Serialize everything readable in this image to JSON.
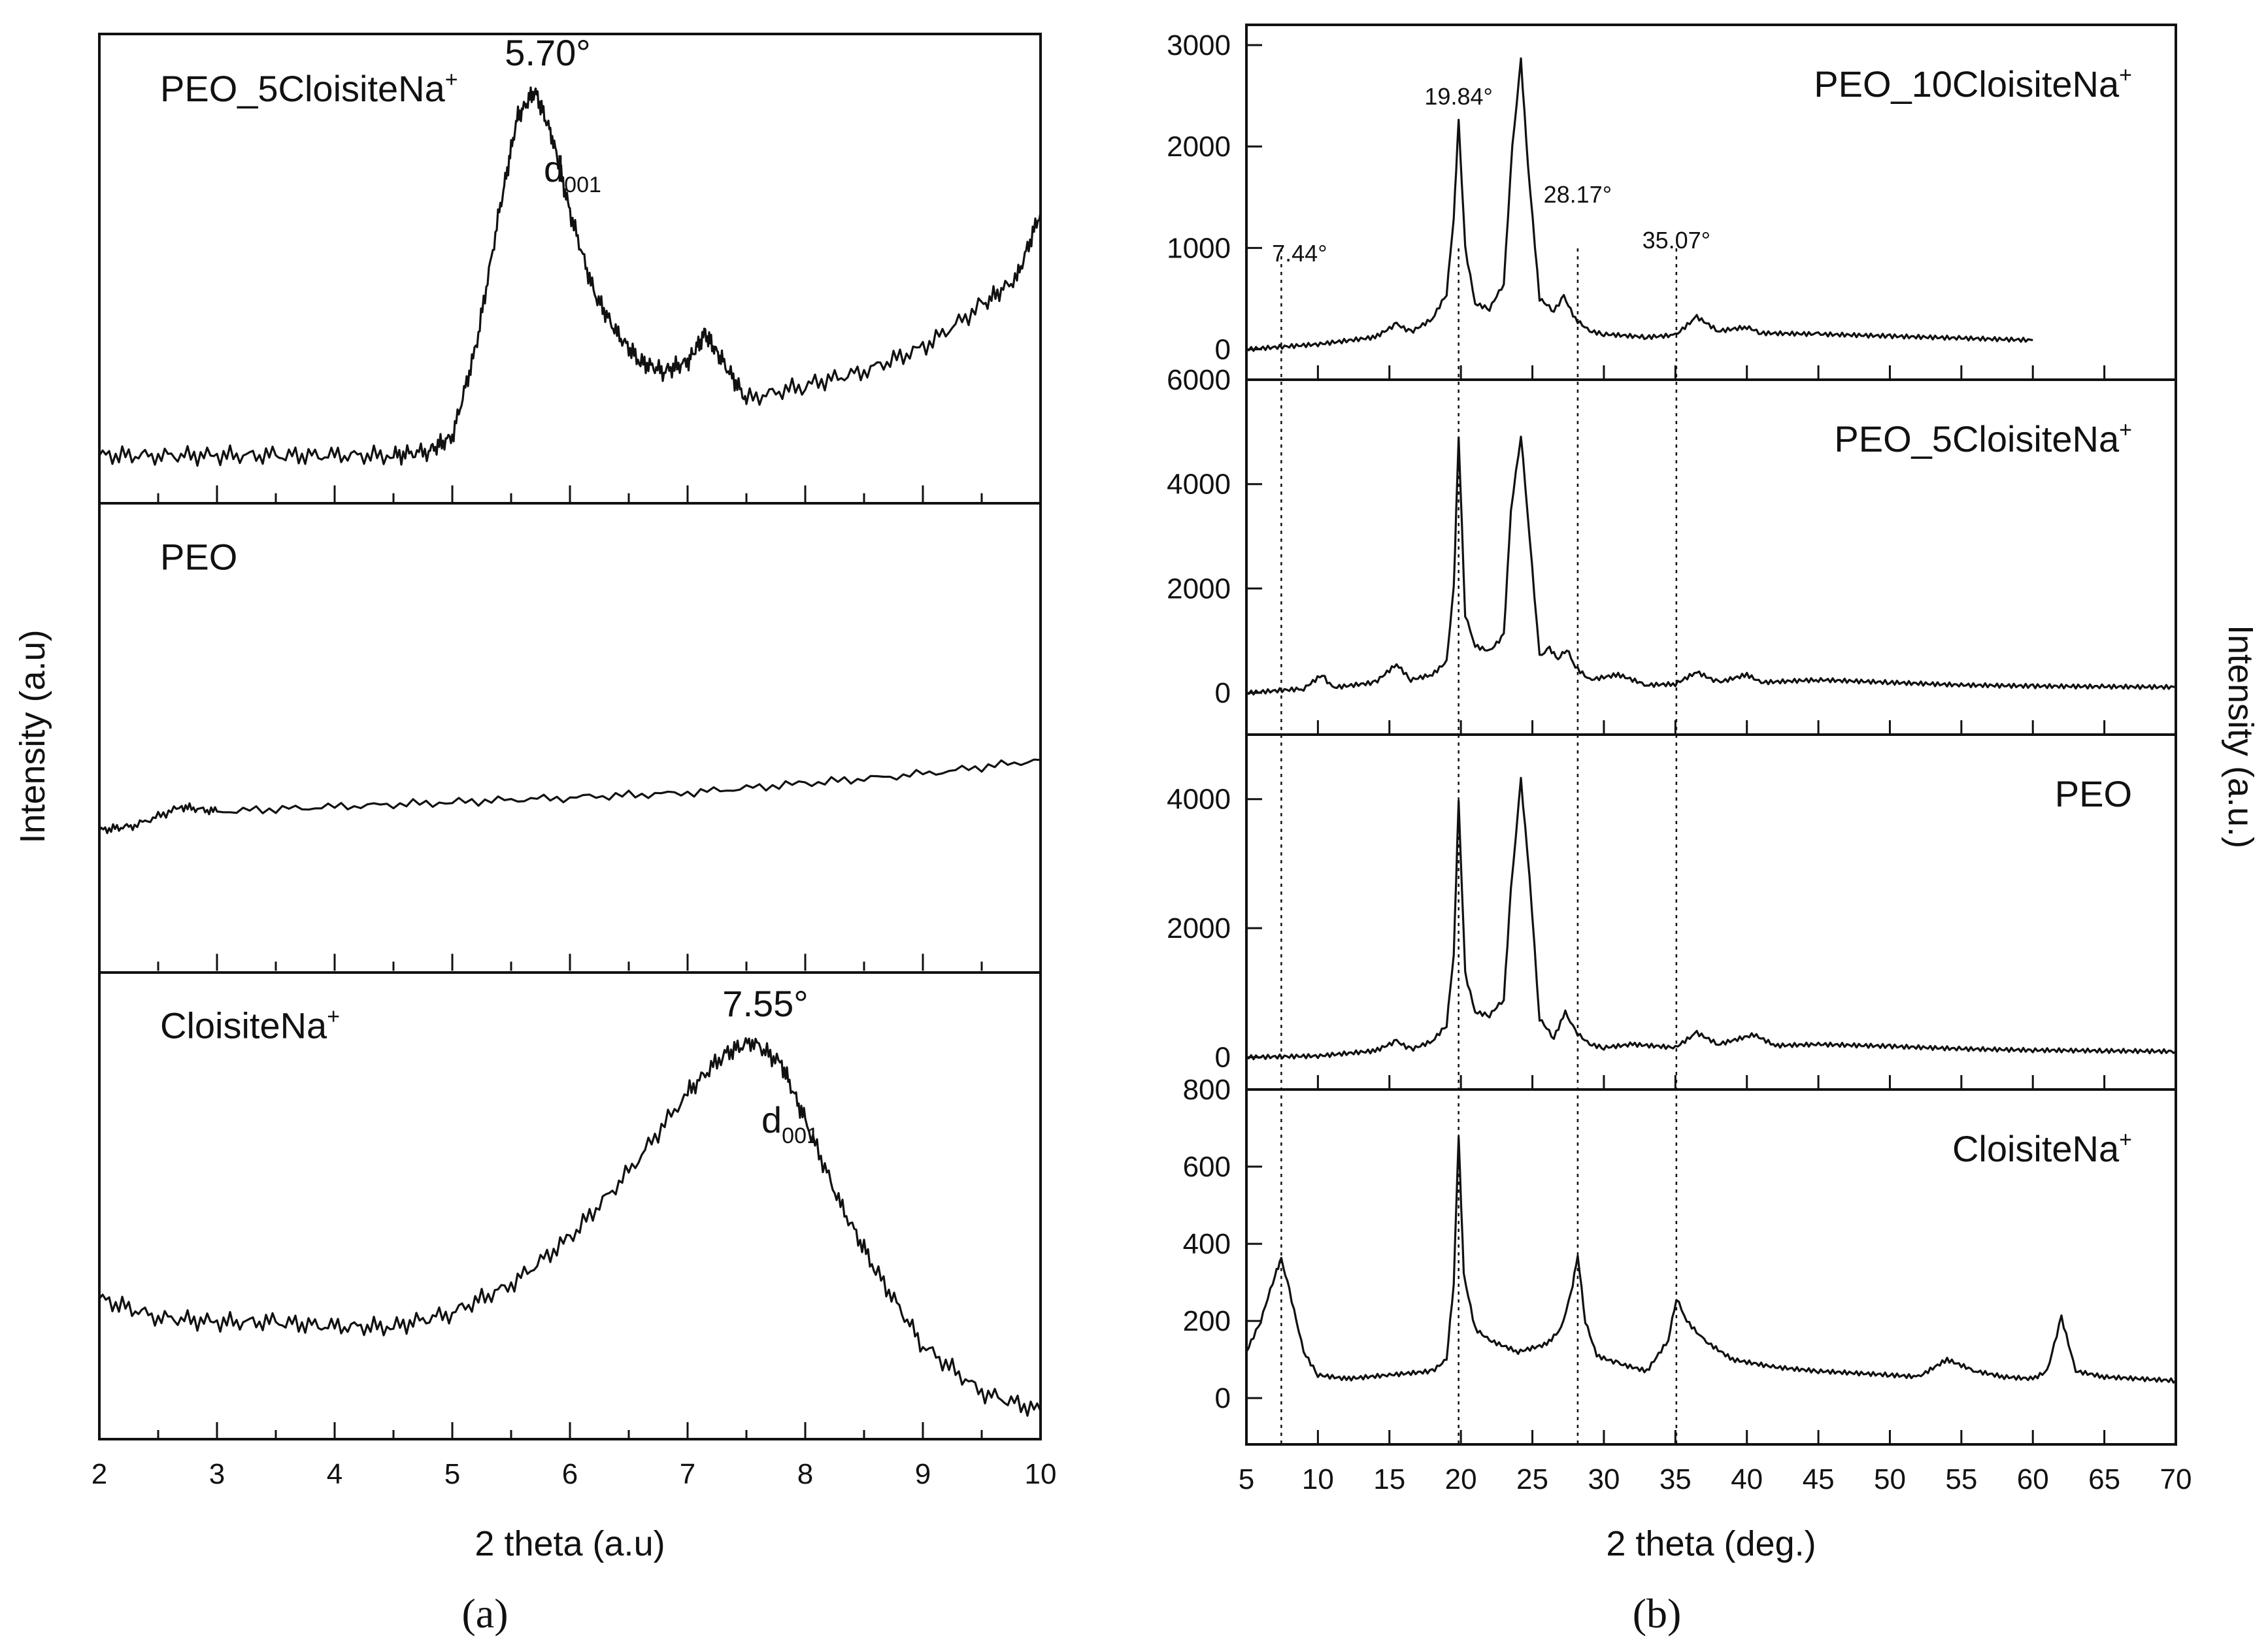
{
  "figure": {
    "subplot_a_label": "(a)",
    "subplot_b_label": "(b)"
  },
  "chart_data": [
    {
      "type": "line",
      "id": "a",
      "xlabel": "2 theta (a.u)",
      "ylabel": "Intensity (a.u)",
      "xlim": [
        2,
        10
      ],
      "xticks": [
        2,
        3,
        4,
        5,
        6,
        7,
        8,
        9,
        10
      ],
      "stacked_panels": [
        {
          "name": "PEO_5CloisiteNa+",
          "label": "PEO_5CloisiteNa",
          "label_sup": "+",
          "peak_label": "5.70°",
          "d_label": "d",
          "d_sub": "001",
          "series": {
            "x": [
              2.0,
              2.5,
              3.0,
              3.5,
              4.0,
              4.5,
              4.8,
              5.0,
              5.2,
              5.4,
              5.55,
              5.7,
              5.85,
              6.0,
              6.2,
              6.4,
              6.6,
              6.8,
              7.0,
              7.15,
              7.3,
              7.5,
              8.0,
              8.5,
              9.0,
              9.5,
              9.8,
              10.0
            ],
            "y": [
              0.1,
              0.1,
              0.1,
              0.1,
              0.1,
              0.1,
              0.11,
              0.14,
              0.33,
              0.62,
              0.82,
              0.88,
              0.78,
              0.62,
              0.45,
              0.36,
              0.3,
              0.28,
              0.3,
              0.36,
              0.3,
              0.22,
              0.25,
              0.28,
              0.33,
              0.42,
              0.48,
              0.62
            ]
          }
        },
        {
          "name": "PEO",
          "label": "PEO",
          "series": {
            "x": [
              2.0,
              2.3,
              2.7,
              3.0,
              4.0,
              5.0,
              6.0,
              7.0,
              8.0,
              9.0,
              10.0
            ],
            "y": [
              0.3,
              0.31,
              0.35,
              0.34,
              0.35,
              0.36,
              0.37,
              0.38,
              0.4,
              0.42,
              0.45
            ]
          }
        },
        {
          "name": "CloisiteNa+",
          "label": "CloisiteNa",
          "label_sup": "+",
          "peak_label": "7.55°",
          "d_label": "d",
          "d_sub": "001",
          "series": {
            "x": [
              2.0,
              2.5,
              3.0,
              3.5,
              4.0,
              4.5,
              5.0,
              5.5,
              6.0,
              6.5,
              7.0,
              7.3,
              7.55,
              7.8,
              8.0,
              8.3,
              8.6,
              9.0,
              9.5,
              10.0
            ],
            "y": [
              0.3,
              0.26,
              0.25,
              0.25,
              0.24,
              0.24,
              0.27,
              0.33,
              0.43,
              0.57,
              0.74,
              0.82,
              0.85,
              0.8,
              0.68,
              0.5,
              0.36,
              0.2,
              0.1,
              0.06
            ]
          }
        }
      ]
    },
    {
      "type": "line",
      "id": "b",
      "xlabel": "2 theta (deg.)",
      "ylabel": "Intensity (a.u.)",
      "xlim": [
        5,
        70
      ],
      "xticks": [
        5,
        10,
        15,
        20,
        25,
        30,
        35,
        40,
        45,
        50,
        55,
        60,
        65,
        70
      ],
      "reference_lines": [
        {
          "x": 7.44,
          "label": "7.44°"
        },
        {
          "x": 19.84,
          "label": "19.84°"
        },
        {
          "x": 28.17,
          "label": "28.17°"
        },
        {
          "x": 35.07,
          "label": "35.07°"
        }
      ],
      "stacked_panels": [
        {
          "name": "PEO_10CloisiteNa+",
          "label": "PEO_10CloisiteNa",
          "label_sup": "+",
          "ylim": [
            -300,
            3200
          ],
          "yticks": [
            0,
            1000,
            2000,
            3000
          ],
          "ytick_labels": [
            "0",
            "1000",
            "2000",
            "3000"
          ],
          "series": {
            "x": [
              5,
              10,
              14,
              15.5,
              16.5,
              18,
              19,
              19.5,
              19.84,
              20.3,
              21,
              22,
              23,
              23.6,
              24.2,
              24.7,
              25.5,
              26.5,
              27.2,
              28,
              29,
              30,
              33,
              35,
              36.5,
              38,
              40,
              41,
              45,
              50,
              55,
              60
            ],
            "y": [
              0,
              50,
              120,
              250,
              170,
              300,
              550,
              1300,
              2250,
              1000,
              450,
              400,
              650,
              2000,
              2850,
              1800,
              500,
              380,
              520,
              300,
              180,
              150,
              120,
              140,
              320,
              180,
              220,
              160,
              150,
              130,
              110,
              90
            ]
          }
        },
        {
          "name": "PEO_5CloisiteNa+",
          "label": "PEO_5CloisiteNa",
          "label_sup": "+",
          "ylim": [
            -800,
            6000
          ],
          "yticks": [
            0,
            2000,
            4000,
            6000
          ],
          "ytick_labels": [
            "0",
            "2000",
            "4000",
            "6000"
          ],
          "series": {
            "x": [
              5,
              9,
              10.3,
              11,
              14,
              15.5,
              16.5,
              18,
              19,
              19.5,
              19.84,
              20.3,
              21,
              22,
              23,
              23.5,
              24.2,
              24.8,
              25.5,
              26.2,
              26.8,
              27.4,
              28,
              29,
              31,
              33,
              35,
              36.5,
              38,
              40,
              41,
              45,
              50,
              55,
              60,
              65,
              70
            ],
            "y": [
              0,
              80,
              350,
              100,
              200,
              550,
              250,
              350,
              600,
              2000,
              4900,
              1500,
              900,
              800,
              1100,
              3500,
              4950,
              3000,
              700,
              850,
              650,
              850,
              500,
              250,
              350,
              150,
              170,
              400,
              200,
              350,
              200,
              250,
              200,
              150,
              130,
              120,
              110
            ]
          }
        },
        {
          "name": "PEO",
          "label": "PEO",
          "ylim": [
            -500,
            5000
          ],
          "yticks": [
            0,
            2000,
            4000
          ],
          "ytick_labels": [
            "0",
            "2000",
            "4000"
          ],
          "series": {
            "x": [
              5,
              10,
              14,
              15.5,
              16.5,
              18,
              19,
              19.5,
              19.84,
              20.3,
              21,
              22,
              23,
              23.5,
              24.2,
              24.8,
              25.5,
              26.5,
              27.3,
              28,
              29,
              30,
              32,
              35,
              36.5,
              38,
              40.5,
              42,
              45,
              50,
              55,
              60,
              65,
              70
            ],
            "y": [
              0,
              20,
              100,
              250,
              120,
              250,
              500,
              1600,
              3950,
              1300,
              700,
              650,
              900,
              2600,
              4300,
              2800,
              600,
              300,
              700,
              400,
              200,
              150,
              200,
              150,
              380,
              200,
              350,
              180,
              200,
              170,
              130,
              110,
              100,
              90
            ]
          }
        },
        {
          "name": "CloisiteNa+",
          "label": "CloisiteNa",
          "label_sup": "+",
          "ylim": [
            -120,
            800
          ],
          "yticks": [
            0,
            200,
            400,
            600,
            800
          ],
          "ytick_labels": [
            "0",
            "200",
            "400",
            "600",
            "800"
          ],
          "series": {
            "x": [
              5,
              6,
              7,
              7.44,
              8,
              9,
              10,
              12,
              15,
              18,
              19,
              19.5,
              19.84,
              20.2,
              21,
              22,
              24,
              26,
              27,
              27.7,
              28.17,
              28.7,
              29.5,
              31,
              33,
              34.5,
              35.07,
              35.8,
              37,
              39,
              42,
              45,
              50,
              52,
              54,
              56,
              58,
              60,
              61,
              62,
              63,
              65,
              70
            ],
            "y": [
              120,
              200,
              320,
              360,
              280,
              120,
              60,
              50,
              60,
              70,
              100,
              300,
              680,
              320,
              180,
              150,
              120,
              140,
              180,
              270,
              370,
              200,
              110,
              90,
              70,
              150,
              260,
              200,
              150,
              100,
              80,
              70,
              60,
              55,
              100,
              70,
              55,
              50,
              70,
              210,
              70,
              55,
              45
            ]
          }
        }
      ]
    }
  ]
}
